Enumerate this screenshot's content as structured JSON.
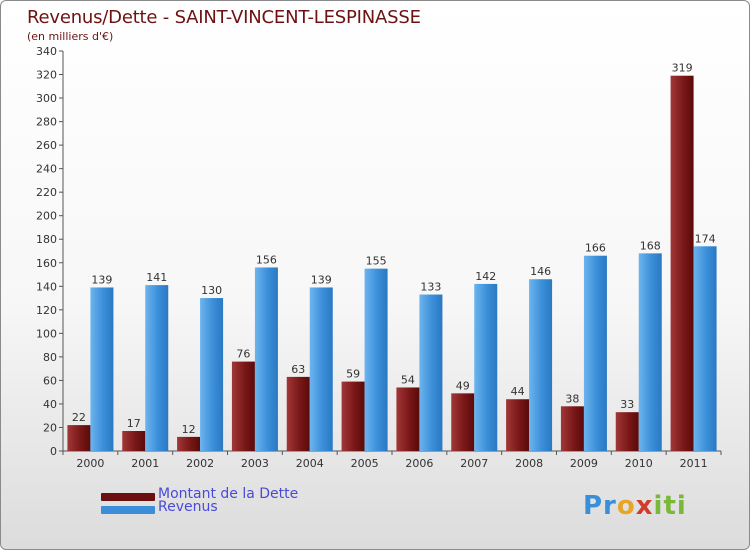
{
  "header": {
    "title": "Revenus/Dette - SAINT-VINCENT-LESPINASSE",
    "subtitle": "(en milliers d'€)"
  },
  "chart_data": {
    "type": "bar",
    "categories": [
      "2000",
      "2001",
      "2002",
      "2003",
      "2004",
      "2005",
      "2006",
      "2007",
      "2008",
      "2009",
      "2010",
      "2011"
    ],
    "series": [
      {
        "name": "Montant de la Dette",
        "color": "#7a1818",
        "values": [
          22,
          17,
          12,
          76,
          63,
          59,
          54,
          49,
          44,
          38,
          33,
          319
        ]
      },
      {
        "name": "Revenus",
        "color": "#3b8fd9",
        "values": [
          139,
          141,
          130,
          156,
          139,
          155,
          133,
          142,
          146,
          166,
          168,
          174
        ]
      }
    ],
    "ylim": [
      0,
      340
    ],
    "yticks": [
      0,
      20,
      40,
      60,
      80,
      100,
      120,
      140,
      160,
      180,
      200,
      220,
      240,
      260,
      280,
      300,
      320,
      340
    ],
    "grid": false,
    "data_labels": true,
    "legend_position": "bottom-left"
  },
  "legend": {
    "items": [
      {
        "label": "Montant de la Dette",
        "color": "#7a1818"
      },
      {
        "label": "Revenus",
        "color": "#3b8fd9"
      }
    ]
  },
  "logo": {
    "text": "Proxiti",
    "parts": [
      "Pr",
      "o",
      "x",
      "iti"
    ]
  }
}
